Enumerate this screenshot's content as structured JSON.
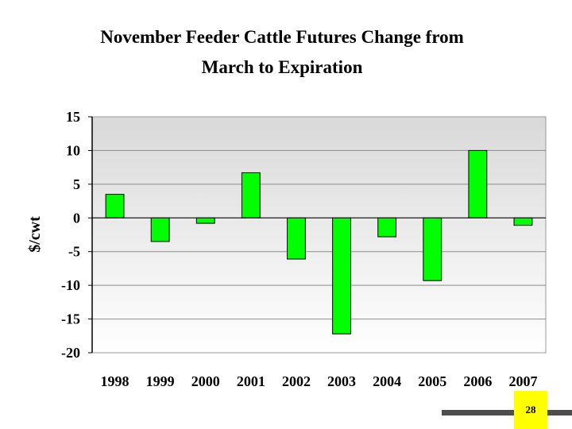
{
  "chart_data": {
    "type": "bar",
    "title_line1": "November Feeder Cattle Futures Change from",
    "title_line2": "March to Expiration",
    "ylabel": "$/cwt",
    "xlabel": "",
    "categories": [
      "1998",
      "1999",
      "2000",
      "2001",
      "2002",
      "2003",
      "2004",
      "2005",
      "2006",
      "2007"
    ],
    "values": [
      3.5,
      -3.5,
      -0.8,
      6.7,
      -6.1,
      -17.2,
      -2.8,
      -9.3,
      10.0,
      -1.1
    ],
    "ylim": [
      -20,
      15
    ],
    "yticks": [
      "15",
      "10",
      "5",
      "0",
      "-5",
      "-10",
      "-15",
      "-20"
    ],
    "grid": true,
    "bar_color": "#00ff00",
    "legend": "none"
  },
  "page": {
    "number": "28"
  }
}
